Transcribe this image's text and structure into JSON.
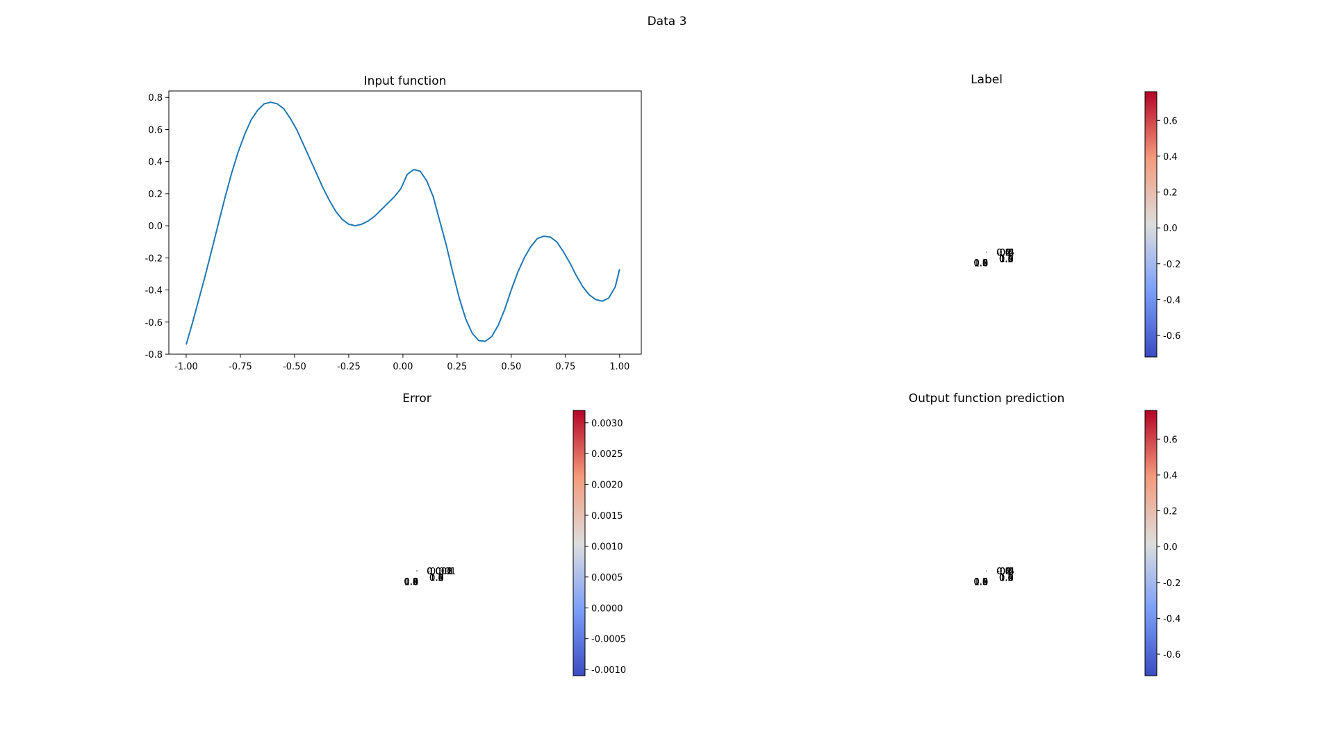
{
  "figure": {
    "suptitle": "Data 3"
  },
  "colors": {
    "line": "#1f77b4",
    "cmap_low": "#3b4cc0",
    "cmap_mid": "#dddddd",
    "cmap_high": "#b40426",
    "pane": "#f2f2f2",
    "grid": "#cfcfcf"
  },
  "chart_data": [
    {
      "id": "input-function",
      "type": "line",
      "title": "Input function",
      "xlim": [
        -1.08,
        1.1
      ],
      "ylim": [
        -0.8,
        0.84
      ],
      "xticks": [
        "-1.00",
        "-0.75",
        "-0.50",
        "-0.25",
        "0.00",
        "0.25",
        "0.50",
        "0.75",
        "1.00"
      ],
      "yticks": [
        "-0.8",
        "-0.6",
        "-0.4",
        "-0.2",
        "0.0",
        "0.2",
        "0.4",
        "0.6",
        "0.8"
      ],
      "series": [
        {
          "x": [
            -1.0,
            -0.97,
            -0.94,
            -0.91,
            -0.88,
            -0.85,
            -0.82,
            -0.79,
            -0.76,
            -0.73,
            -0.7,
            -0.67,
            -0.64,
            -0.61,
            -0.58,
            -0.55,
            -0.52,
            -0.49,
            -0.46,
            -0.43,
            -0.4,
            -0.37,
            -0.34,
            -0.31,
            -0.28,
            -0.25,
            -0.22,
            -0.19,
            -0.16,
            -0.13,
            -0.1,
            -0.07,
            -0.04,
            -0.01,
            0.02,
            0.05,
            0.08,
            0.11,
            0.14,
            0.17,
            0.2,
            0.23,
            0.26,
            0.29,
            0.32,
            0.35,
            0.38,
            0.41,
            0.44,
            0.47,
            0.5,
            0.53,
            0.56,
            0.59,
            0.62,
            0.65,
            0.68,
            0.71,
            0.74,
            0.77,
            0.8,
            0.83,
            0.86,
            0.89,
            0.92,
            0.95,
            0.98,
            1.0
          ],
          "y": [
            -0.74,
            -0.6,
            -0.45,
            -0.3,
            -0.14,
            0.02,
            0.18,
            0.33,
            0.46,
            0.57,
            0.66,
            0.72,
            0.76,
            0.77,
            0.76,
            0.73,
            0.67,
            0.6,
            0.51,
            0.42,
            0.33,
            0.24,
            0.16,
            0.09,
            0.04,
            0.01,
            0.0,
            0.01,
            0.03,
            0.06,
            0.1,
            0.14,
            0.18,
            0.23,
            0.32,
            0.35,
            0.34,
            0.28,
            0.18,
            0.03,
            -0.12,
            -0.29,
            -0.45,
            -0.58,
            -0.67,
            -0.715,
            -0.72,
            -0.69,
            -0.62,
            -0.52,
            -0.4,
            -0.29,
            -0.2,
            -0.13,
            -0.08,
            -0.065,
            -0.07,
            -0.1,
            -0.16,
            -0.23,
            -0.31,
            -0.38,
            -0.43,
            -0.46,
            -0.47,
            -0.45,
            -0.38,
            -0.27
          ]
        }
      ]
    },
    {
      "id": "label",
      "type": "surface3d",
      "title": "Label",
      "xticks": [
        "0.0",
        "0.2",
        "0.4",
        "0.6",
        "0.8",
        "1.0"
      ],
      "yticks": [
        "0.0",
        "0.2",
        "0.4",
        "0.6",
        "0.8",
        "1.0"
      ],
      "zticks": [
        "-0.6",
        "-0.4",
        "-0.2",
        "0.0",
        "0.2",
        "0.4",
        "0.6"
      ],
      "zlim": [
        -0.8,
        0.8
      ],
      "colorbar": {
        "range": [
          -0.72,
          0.76
        ],
        "ticks": [
          "-0.6",
          "-0.4",
          "-0.2",
          "0.0",
          "0.2",
          "0.4",
          "0.6"
        ]
      }
    },
    {
      "id": "error",
      "type": "surface3d",
      "title": "Error",
      "xticks": [
        "0.0",
        "0.2",
        "0.4",
        "0.6",
        "0.8",
        "1.0"
      ],
      "yticks": [
        "0.0",
        "0.2",
        "0.4",
        "0.6",
        "0.8",
        "1.0"
      ],
      "zticks": [
        "-0.001",
        "0.000",
        "0.001",
        "0.002",
        "0.003"
      ],
      "zlim": [
        -0.0013,
        0.0034
      ],
      "colorbar": {
        "range": [
          -0.0011,
          0.0032
        ],
        "ticks": [
          "-0.0010",
          "-0.0005",
          "0.0000",
          "0.0005",
          "0.0010",
          "0.0015",
          "0.0020",
          "0.0025",
          "0.0030"
        ]
      }
    },
    {
      "id": "output-function-prediction",
      "type": "surface3d",
      "title": "Output function prediction",
      "xticks": [
        "0.0",
        "0.2",
        "0.4",
        "0.6",
        "0.8",
        "1.0"
      ],
      "yticks": [
        "0.0",
        "0.2",
        "0.4",
        "0.6",
        "0.8",
        "1.0"
      ],
      "zticks": [
        "-0.6",
        "-0.4",
        "-0.2",
        "0.0",
        "0.2",
        "0.4",
        "0.6"
      ],
      "zlim": [
        -0.8,
        0.8
      ],
      "colorbar": {
        "range": [
          -0.72,
          0.76
        ],
        "ticks": [
          "-0.6",
          "-0.4",
          "-0.2",
          "0.0",
          "0.2",
          "0.4",
          "0.6"
        ]
      }
    }
  ]
}
